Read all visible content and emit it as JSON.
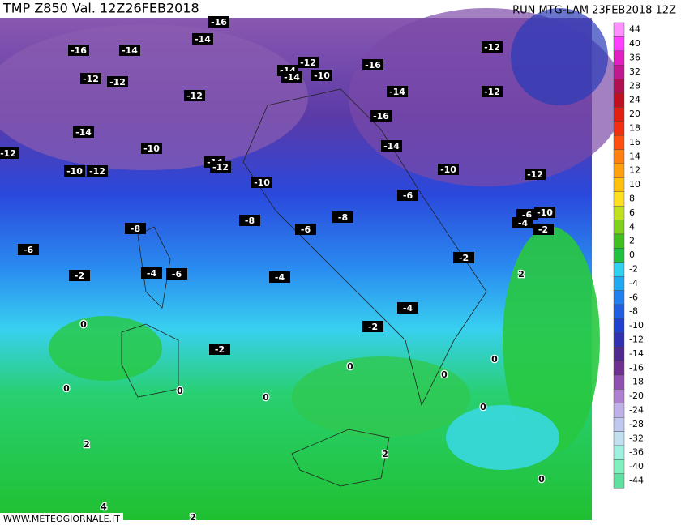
{
  "header": {
    "left": "TMP  Z850  Val. 12Z26FEB2018",
    "right": "RUN  MTG-LAM  23FEB2018  12Z"
  },
  "watermark": "WWW.METEOGIORNALE.IT",
  "legend": [
    {
      "value": 44,
      "color": "#ff90ff"
    },
    {
      "value": 40,
      "color": "#ff40ff"
    },
    {
      "value": 36,
      "color": "#e020c0"
    },
    {
      "value": 32,
      "color": "#c01890"
    },
    {
      "value": 28,
      "color": "#b01050"
    },
    {
      "value": 24,
      "color": "#c01020"
    },
    {
      "value": 20,
      "color": "#e02010"
    },
    {
      "value": 18,
      "color": "#f03010"
    },
    {
      "value": 16,
      "color": "#ff5010"
    },
    {
      "value": 14,
      "color": "#ff8010"
    },
    {
      "value": 12,
      "color": "#ffa010"
    },
    {
      "value": 10,
      "color": "#ffc010"
    },
    {
      "value": 8,
      "color": "#ffe020"
    },
    {
      "value": 6,
      "color": "#c0e020"
    },
    {
      "value": 4,
      "color": "#80d020"
    },
    {
      "value": 2,
      "color": "#40c020"
    },
    {
      "value": 0,
      "color": "#20c040"
    },
    {
      "value": -2,
      "color": "#30d0f0"
    },
    {
      "value": -4,
      "color": "#20a8f0"
    },
    {
      "value": -6,
      "color": "#2080f0"
    },
    {
      "value": -8,
      "color": "#2060e0"
    },
    {
      "value": -10,
      "color": "#2040d0"
    },
    {
      "value": -12,
      "color": "#3030b0"
    },
    {
      "value": -14,
      "color": "#502890"
    },
    {
      "value": -16,
      "color": "#703090"
    },
    {
      "value": -18,
      "color": "#9050b0"
    },
    {
      "value": -20,
      "color": "#b080d0"
    },
    {
      "value": -24,
      "color": "#c0b0e8"
    },
    {
      "value": -28,
      "color": "#c0c8f0"
    },
    {
      "value": -32,
      "color": "#c0e0f0"
    },
    {
      "value": -36,
      "color": "#a0f0e0"
    },
    {
      "value": -40,
      "color": "#80f0c0"
    },
    {
      "value": -44,
      "color": "#60e0a0"
    }
  ],
  "contour_labels": [
    -16,
    -14,
    -14,
    -16,
    -12,
    -12,
    -12,
    -14,
    -14,
    -12,
    -10,
    -16,
    -14,
    -12,
    -12,
    -16,
    -14,
    -10,
    -12,
    -10,
    -12,
    -14,
    -12,
    -10,
    -14,
    -10,
    -12,
    -6,
    -8,
    -8,
    -6,
    -8,
    -6,
    -10,
    -4,
    -2,
    -6,
    -2,
    -2,
    -4,
    -6,
    -4,
    2,
    -4,
    0,
    -2,
    -2,
    0,
    0,
    0,
    0,
    0,
    0,
    0,
    2,
    2,
    0,
    4,
    2
  ]
}
